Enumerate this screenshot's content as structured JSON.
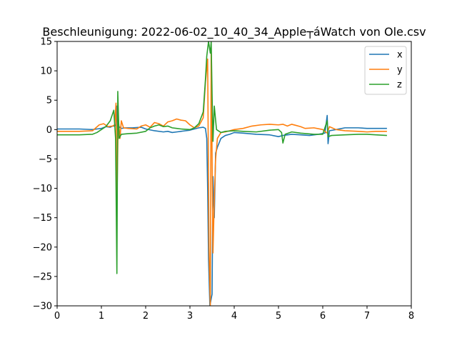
{
  "chart_data": {
    "type": "line",
    "title": "Beschleunigung: 2022-06-02_10_40_34_Apple┬áWatch von Ole.csv",
    "xlabel": "",
    "ylabel": "",
    "xlim": [
      0,
      8
    ],
    "ylim": [
      -30,
      15
    ],
    "xticks": [
      "0",
      "1",
      "2",
      "3",
      "4",
      "5",
      "6",
      "7",
      "8"
    ],
    "yticks": [
      "15",
      "10",
      "5",
      "0",
      "−5",
      "−10",
      "−15",
      "−20",
      "−25",
      "−30"
    ],
    "grid": false,
    "legend_position": "top-right",
    "series": [
      {
        "name": "x",
        "color": "#1f77b4",
        "points": [
          [
            0,
            0.1
          ],
          [
            0.5,
            0.1
          ],
          [
            0.8,
            0
          ],
          [
            0.9,
            0.1
          ],
          [
            1.0,
            0.2
          ],
          [
            1.1,
            0.5
          ],
          [
            1.2,
            0.4
          ],
          [
            1.25,
            0.6
          ],
          [
            1.3,
            0.6
          ],
          [
            1.33,
            0.8
          ],
          [
            1.35,
            4.0
          ],
          [
            1.37,
            -1.0
          ],
          [
            1.4,
            0.5
          ],
          [
            1.45,
            0.2
          ],
          [
            1.55,
            0.3
          ],
          [
            1.7,
            0.3
          ],
          [
            1.9,
            0.4
          ],
          [
            2.0,
            0.1
          ],
          [
            2.2,
            -0.2
          ],
          [
            2.4,
            -0.4
          ],
          [
            2.5,
            -0.3
          ],
          [
            2.6,
            -0.5
          ],
          [
            2.7,
            -0.4
          ],
          [
            2.8,
            -0.3
          ],
          [
            3.0,
            -0.1
          ],
          [
            3.1,
            0.1
          ],
          [
            3.2,
            0.3
          ],
          [
            3.3,
            0.4
          ],
          [
            3.35,
            0.2
          ],
          [
            3.38,
            -1.5
          ],
          [
            3.4,
            -10
          ],
          [
            3.42,
            -22
          ],
          [
            3.45,
            -30
          ],
          [
            3.5,
            -28
          ],
          [
            3.52,
            -8
          ],
          [
            3.55,
            -15
          ],
          [
            3.58,
            -4
          ],
          [
            3.62,
            -3
          ],
          [
            3.7,
            -1.5
          ],
          [
            3.8,
            -1.0
          ],
          [
            3.9,
            -0.8
          ],
          [
            4.0,
            -0.5
          ],
          [
            4.2,
            -0.6
          ],
          [
            4.5,
            -0.8
          ],
          [
            4.8,
            -0.9
          ],
          [
            5.0,
            -1.2
          ],
          [
            5.1,
            -1.0
          ],
          [
            5.3,
            -0.8
          ],
          [
            5.5,
            -0.9
          ],
          [
            5.7,
            -1.0
          ],
          [
            5.9,
            -0.8
          ],
          [
            6.05,
            -0.6
          ],
          [
            6.1,
            2.4
          ],
          [
            6.12,
            -2.4
          ],
          [
            6.15,
            -0.2
          ],
          [
            6.3,
            0.0
          ],
          [
            6.5,
            0.3
          ],
          [
            6.8,
            0.3
          ],
          [
            7.0,
            0.2
          ],
          [
            7.2,
            0.2
          ],
          [
            7.45,
            0.2
          ]
        ]
      },
      {
        "name": "y",
        "color": "#ff7f0e",
        "points": [
          [
            0,
            -0.3
          ],
          [
            0.5,
            -0.3
          ],
          [
            0.8,
            -0.2
          ],
          [
            0.95,
            0.8
          ],
          [
            1.05,
            1.0
          ],
          [
            1.15,
            0.5
          ],
          [
            1.25,
            0.6
          ],
          [
            1.3,
            0.8
          ],
          [
            1.33,
            4.5
          ],
          [
            1.35,
            -13
          ],
          [
            1.38,
            2.0
          ],
          [
            1.42,
            -1.5
          ],
          [
            1.45,
            1.5
          ],
          [
            1.5,
            0.3
          ],
          [
            1.6,
            0.2
          ],
          [
            1.8,
            0.1
          ],
          [
            1.9,
            0.6
          ],
          [
            2.0,
            0.8
          ],
          [
            2.1,
            0.4
          ],
          [
            2.2,
            1.2
          ],
          [
            2.3,
            1.0
          ],
          [
            2.4,
            0.6
          ],
          [
            2.5,
            1.3
          ],
          [
            2.6,
            1.5
          ],
          [
            2.7,
            1.8
          ],
          [
            2.8,
            1.6
          ],
          [
            2.9,
            1.5
          ],
          [
            3.0,
            0.8
          ],
          [
            3.1,
            0.3
          ],
          [
            3.2,
            0.6
          ],
          [
            3.3,
            2.0
          ],
          [
            3.35,
            8.0
          ],
          [
            3.4,
            12
          ],
          [
            3.43,
            -20
          ],
          [
            3.46,
            -30
          ],
          [
            3.48,
            14
          ],
          [
            3.5,
            -4
          ],
          [
            3.52,
            -21
          ],
          [
            3.55,
            -12
          ],
          [
            3.58,
            -5
          ],
          [
            3.62,
            -1.5
          ],
          [
            3.7,
            -0.5
          ],
          [
            3.8,
            -0.4
          ],
          [
            4.0,
            0.0
          ],
          [
            4.2,
            0.2
          ],
          [
            4.4,
            0.6
          ],
          [
            4.6,
            0.8
          ],
          [
            4.8,
            0.9
          ],
          [
            5.0,
            0.8
          ],
          [
            5.1,
            0.9
          ],
          [
            5.2,
            0.6
          ],
          [
            5.3,
            0.9
          ],
          [
            5.4,
            0.7
          ],
          [
            5.5,
            0.5
          ],
          [
            5.6,
            0.2
          ],
          [
            5.8,
            0.3
          ],
          [
            6.0,
            0.0
          ],
          [
            6.1,
            -0.6
          ],
          [
            6.15,
            0.5
          ],
          [
            6.3,
            0.0
          ],
          [
            6.5,
            -0.2
          ],
          [
            6.8,
            -0.3
          ],
          [
            7.0,
            -0.4
          ],
          [
            7.2,
            -0.3
          ],
          [
            7.45,
            -0.3
          ]
        ]
      },
      {
        "name": "z",
        "color": "#2ca02c",
        "points": [
          [
            0,
            -0.9
          ],
          [
            0.5,
            -0.9
          ],
          [
            0.8,
            -0.8
          ],
          [
            0.9,
            -0.5
          ],
          [
            1.0,
            0.0
          ],
          [
            1.1,
            0.5
          ],
          [
            1.2,
            1.5
          ],
          [
            1.28,
            3.3
          ],
          [
            1.32,
            -1.5
          ],
          [
            1.35,
            -24.5
          ],
          [
            1.37,
            6.5
          ],
          [
            1.4,
            -1.5
          ],
          [
            1.45,
            -0.8
          ],
          [
            1.6,
            -0.7
          ],
          [
            1.8,
            -0.6
          ],
          [
            2.0,
            -0.3
          ],
          [
            2.1,
            0.3
          ],
          [
            2.2,
            0.6
          ],
          [
            2.3,
            0.8
          ],
          [
            2.4,
            0.5
          ],
          [
            2.5,
            0.6
          ],
          [
            2.6,
            0.3
          ],
          [
            2.7,
            0.2
          ],
          [
            2.8,
            0.1
          ],
          [
            3.0,
            0.0
          ],
          [
            3.1,
            0.3
          ],
          [
            3.2,
            1.0
          ],
          [
            3.3,
            3.0
          ],
          [
            3.35,
            8.5
          ],
          [
            3.38,
            12.5
          ],
          [
            3.42,
            15
          ],
          [
            3.46,
            13
          ],
          [
            3.48,
            15
          ],
          [
            3.5,
            6
          ],
          [
            3.52,
            -2
          ],
          [
            3.55,
            4
          ],
          [
            3.6,
            0.0
          ],
          [
            3.7,
            -0.5
          ],
          [
            3.8,
            -0.3
          ],
          [
            4.0,
            -0.2
          ],
          [
            4.2,
            -0.3
          ],
          [
            4.5,
            -0.4
          ],
          [
            4.8,
            -0.1
          ],
          [
            5.0,
            0.0
          ],
          [
            5.07,
            -0.5
          ],
          [
            5.1,
            -2.3
          ],
          [
            5.15,
            -0.8
          ],
          [
            5.3,
            -0.4
          ],
          [
            5.5,
            -0.6
          ],
          [
            5.8,
            -0.8
          ],
          [
            6.0,
            -0.8
          ],
          [
            6.1,
            1.5
          ],
          [
            6.12,
            -1.2
          ],
          [
            6.2,
            -1.0
          ],
          [
            6.5,
            -0.9
          ],
          [
            6.8,
            -0.8
          ],
          [
            7.0,
            -0.8
          ],
          [
            7.2,
            -0.9
          ],
          [
            7.45,
            -1.0
          ]
        ]
      }
    ]
  }
}
